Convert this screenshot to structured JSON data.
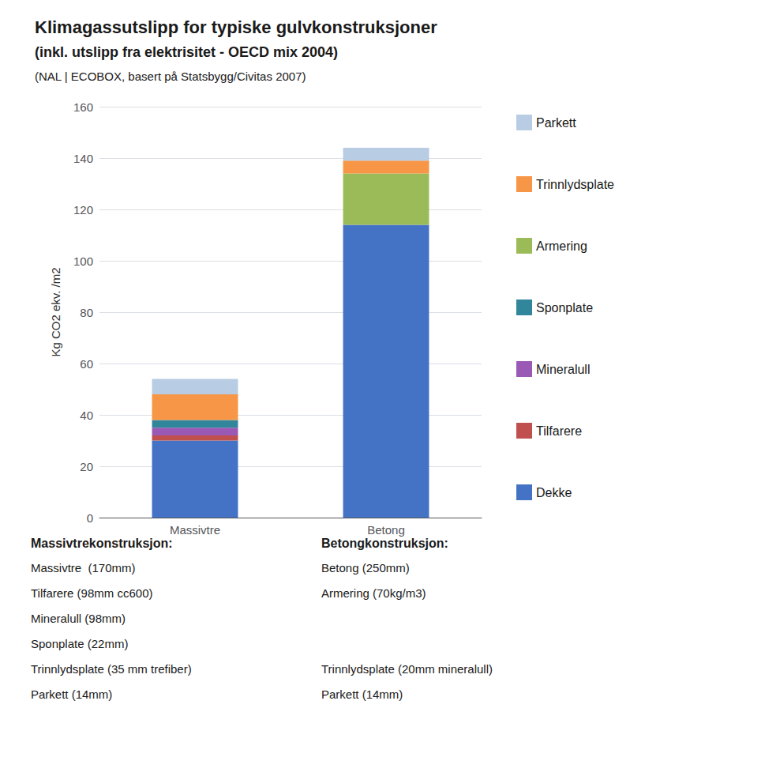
{
  "chart_data": {
    "type": "bar",
    "title": "Klimagassutslipp for typiske gulvkonstruksjoner",
    "subtitle": [
      "(inkl. utslipp fra elektrisitet - OECD mix 2004)",
      "(NAL | ECOBOX, basert på Statsbygg/Civitas 2007)"
    ],
    "categories": [
      "Massivtre",
      "Betong"
    ],
    "ylabel": "Kg CO2 ekv. /m2",
    "ylim": [
      0,
      160
    ],
    "yticks": [
      0,
      20,
      40,
      60,
      80,
      100,
      120,
      140,
      160
    ],
    "stacked": true,
    "grid": true,
    "legend": "right",
    "series": [
      {
        "name": "Dekke",
        "color": "#4472C4",
        "values": [
          30.0,
          114.0
        ]
      },
      {
        "name": "Tilfarere",
        "color": "#C0504D",
        "values": [
          2.0,
          0.0
        ]
      },
      {
        "name": "Mineralull",
        "color": "#9B59B6",
        "values": [
          3.0,
          0.0
        ]
      },
      {
        "name": "Sponplate",
        "color": "#31869B",
        "values": [
          3.0,
          0.0
        ]
      },
      {
        "name": "Armering",
        "color": "#9BBB59",
        "values": [
          0.0,
          20.0
        ]
      },
      {
        "name": "Trinnlydsplate",
        "color": "#F79646",
        "values": [
          10.0,
          5.0
        ]
      },
      {
        "name": "Parkett",
        "color": "#B8CCE4",
        "values": [
          6.0,
          5.0
        ]
      }
    ],
    "annotations": [
      {
        "title": "Massivtrekonstruksjon:",
        "lines": [
          "Massivtre  (170mm)",
          "Tilfarere (98mm cc600)",
          "Mineralull (98mm)",
          "Sponplate (22mm)",
          "Trinnlydsplate (35 mm trefiber)",
          "Parkett (14mm)"
        ]
      },
      {
        "title": "Betongkonstruksjon:",
        "lines": [
          "Betong (250mm)",
          "Armering (70kg/m3)",
          null,
          null,
          "Trinnlydsplate (20mm mineralull)",
          "Parkett (14mm)"
        ]
      }
    ]
  }
}
